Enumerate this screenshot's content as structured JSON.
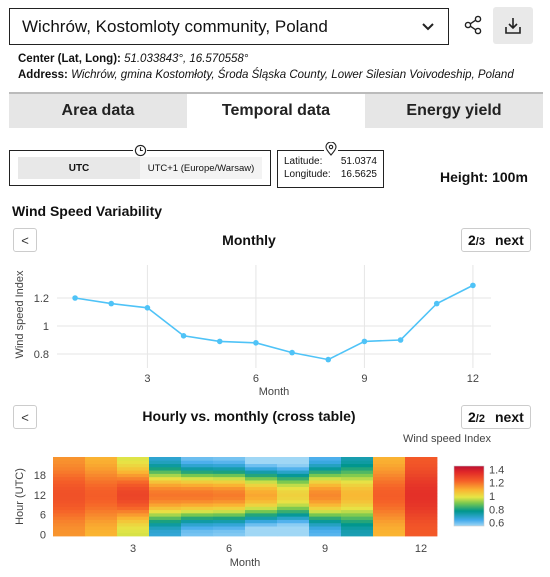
{
  "location": {
    "name": "Wichrów, Kostomloty community, Poland",
    "center_label": "Center (Lat, Long):",
    "center_value": "51.033843°, 16.570558°",
    "address_label": "Address:",
    "address_value": "Wichrów, gmina Kostomłoty, Środa Śląska County, Lower Silesian Voivodeship, Poland"
  },
  "icons": {
    "dropdown": "chevron-down-icon",
    "share": "share-icon",
    "download": "download-icon",
    "clock": "clock-icon",
    "pin": "map-pin-icon"
  },
  "tabs": [
    {
      "label": "Area data",
      "active": false
    },
    {
      "label": "Temporal data",
      "active": true
    },
    {
      "label": "Energy yield",
      "active": false
    }
  ],
  "timezone": {
    "option_a": "UTC",
    "option_b": "UTC+1 (Europe/Warsaw)",
    "selected": "UTC"
  },
  "coords": {
    "lat_label": "Latitude:",
    "lat_value": "51.0374",
    "lon_label": "Longitude:",
    "lon_value": "16.5625"
  },
  "height": "Height: 100m",
  "section_title": "Wind Speed Variability",
  "line_nav": {
    "prev": "<",
    "title": "Monthly",
    "page_current": "2",
    "page_total": "/3",
    "next": "next"
  },
  "heat_nav": {
    "prev": "<",
    "title": "Hourly vs. monthly (cross table)",
    "page_current": "2",
    "page_total": "/2",
    "next": "next"
  },
  "colors": {
    "line": "#4fc3f7"
  },
  "chart_data": [
    {
      "type": "line",
      "title": "Monthly",
      "xlabel": "Month",
      "ylabel": "Wind speed Index",
      "x": [
        1,
        2,
        3,
        4,
        5,
        6,
        7,
        8,
        9,
        10,
        11,
        12
      ],
      "series": [
        {
          "values": [
            1.2,
            1.16,
            1.13,
            0.93,
            0.89,
            0.88,
            0.81,
            0.76,
            0.89,
            0.9,
            1.16,
            1.29
          ]
        }
      ],
      "xticks": [
        "3",
        "6",
        "9",
        "12"
      ],
      "yticks": [
        "0.8",
        "1",
        "1.2"
      ],
      "xlim": [
        0.5,
        12.5
      ],
      "ylim": [
        0.7,
        1.35
      ],
      "grid": true
    },
    {
      "type": "heatmap",
      "title": "Hourly vs. monthly (cross table)",
      "xlabel": "Month",
      "ylabel": "Hour (UTC)",
      "colorbar_title": "Wind speed Index",
      "colorbar_ticks": [
        "0.6",
        "0.8",
        "1",
        "1.2",
        "1.4"
      ],
      "xticks": [
        "3",
        "6",
        "9",
        "12"
      ],
      "yticks": [
        "0",
        "6",
        "12",
        "18"
      ],
      "zlim": [
        0.55,
        1.45
      ],
      "months": [
        1,
        2,
        3,
        4,
        5,
        6,
        7,
        8,
        9,
        10,
        11,
        12
      ],
      "month_base": [
        1.2,
        1.16,
        1.13,
        0.93,
        0.89,
        0.88,
        0.81,
        0.76,
        0.89,
        0.9,
        1.16,
        1.29
      ],
      "hour_amplitude": [
        0.06,
        0.07,
        0.16,
        0.26,
        0.3,
        0.3,
        0.3,
        0.27,
        0.27,
        0.18,
        0.07,
        0.05
      ],
      "hours": 24
    }
  ]
}
